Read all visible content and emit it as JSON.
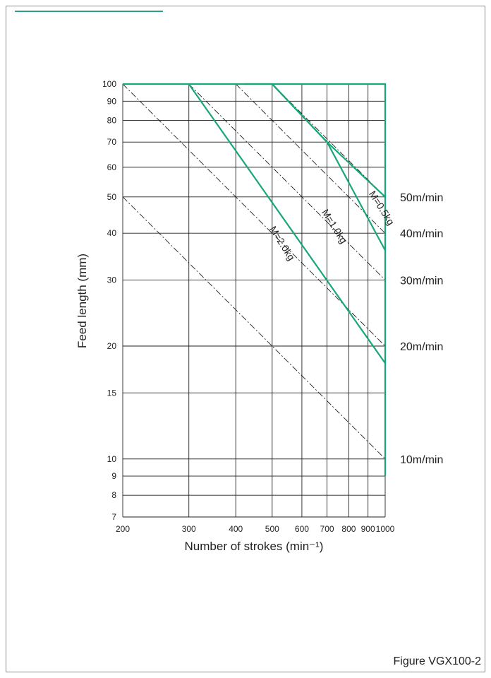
{
  "figure_caption": "Figure VGX100-2",
  "colors": {
    "curve": "#1aa67c",
    "grid": "#222222",
    "speed_line": "#222222",
    "frame": "#8a8a8a"
  },
  "chart_data": {
    "type": "line",
    "title": "",
    "xlabel": "Number of strokes (min⁻¹)",
    "ylabel": "Feed length (mm)",
    "xscale": "log",
    "yscale": "log",
    "xlim": [
      200,
      1000
    ],
    "ylim": [
      7,
      100
    ],
    "grid": true,
    "x_ticks": [
      200,
      300,
      400,
      500,
      600,
      700,
      800,
      900,
      1000
    ],
    "y_ticks": [
      7,
      8,
      9,
      10,
      15,
      20,
      30,
      40,
      50,
      60,
      70,
      80,
      90,
      100
    ],
    "series": [
      {
        "name": "M=0.5kg",
        "points": [
          [
            500,
            100
          ],
          [
            700,
            70
          ],
          [
            1000,
            50
          ]
        ]
      },
      {
        "name": "M=1.0kg",
        "points": [
          [
            420,
            100
          ],
          [
            500,
            100
          ],
          [
            700,
            70
          ],
          [
            1000,
            36
          ]
        ]
      },
      {
        "name": "M=2.0kg",
        "points": [
          [
            300,
            100
          ],
          [
            1000,
            18
          ]
        ]
      },
      {
        "name": "",
        "points": [
          [
            200,
            100
          ],
          [
            1000,
            100
          ],
          [
            1000,
            9
          ]
        ]
      }
    ],
    "speed_lines": [
      {
        "label": "50m/min",
        "speed": 50,
        "labeled_y": 50
      },
      {
        "label": "40m/min",
        "speed": 40,
        "labeled_y": 40
      },
      {
        "label": "30m/min",
        "speed": 30,
        "labeled_y": 30
      },
      {
        "label": "20m/min",
        "speed": 20,
        "labeled_y": 20
      },
      {
        "label": "10m/min",
        "speed": 10,
        "labeled_y": 10
      }
    ]
  }
}
